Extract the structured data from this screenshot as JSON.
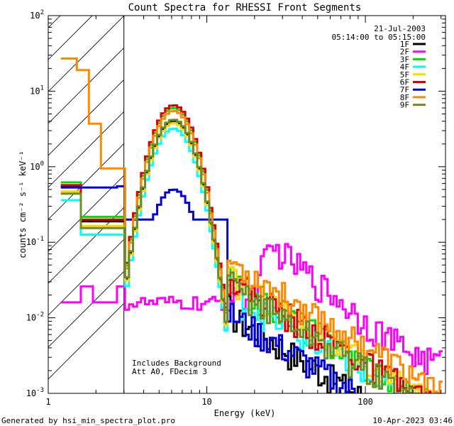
{
  "chart_data": {
    "type": "line",
    "title": "Count Spectra for RHESSI Front Segments",
    "xlabel": "Energy (keV)",
    "ylabel": "counts cm⁻² s⁻¹ keV⁻¹",
    "x_scale": "log",
    "y_scale": "log",
    "xlim": [
      1,
      320
    ],
    "ylim": [
      0.001,
      100
    ],
    "x_ticks": [
      {
        "value": 1,
        "label": "1"
      },
      {
        "value": 10,
        "label": "10"
      },
      {
        "value": 100,
        "label": "100"
      }
    ],
    "y_ticks": [
      {
        "value": 100,
        "base": "10",
        "exp": "2"
      },
      {
        "value": 10,
        "base": "10",
        "exp": "1"
      },
      {
        "value": 1,
        "base": "10",
        "exp": "0"
      },
      {
        "value": 0.1,
        "base": "10",
        "exp": "-1"
      },
      {
        "value": 0.01,
        "base": "10",
        "exp": "-2"
      },
      {
        "value": 0.001,
        "base": "10",
        "exp": "-3"
      }
    ],
    "shaded_region": {
      "x_from": 1,
      "x_to": 3,
      "style": "hatched"
    },
    "date": "21-Jul-2003",
    "time_range": "05:14:00 to 05:15:00",
    "annotations": [
      "Includes Background",
      "Att A0, FDecim 3"
    ],
    "series": [
      {
        "name": "1F",
        "color": "#000000",
        "base": 0.54
      },
      {
        "name": "2F",
        "color": "#ff00ff",
        "base": 0.016
      },
      {
        "name": "3F",
        "color": "#00dd00",
        "base": 0.62
      },
      {
        "name": "4F",
        "color": "#00ffff",
        "base": 0.36
      },
      {
        "name": "5F",
        "color": "#ffd700",
        "base": 0.47
      },
      {
        "name": "6F",
        "color": "#dd0000",
        "base": 0.57
      },
      {
        "name": "7F",
        "color": "#0000dd",
        "base": 0.53
      },
      {
        "name": "8F",
        "color": "#ff8800",
        "base": 27
      },
      {
        "name": "9F",
        "color": "#6b8e23",
        "base": 0.44
      }
    ]
  },
  "footer": {
    "left": "Generated by hsi_min_spectra_plot.pro",
    "right": "10-Apr-2023 03:46"
  }
}
